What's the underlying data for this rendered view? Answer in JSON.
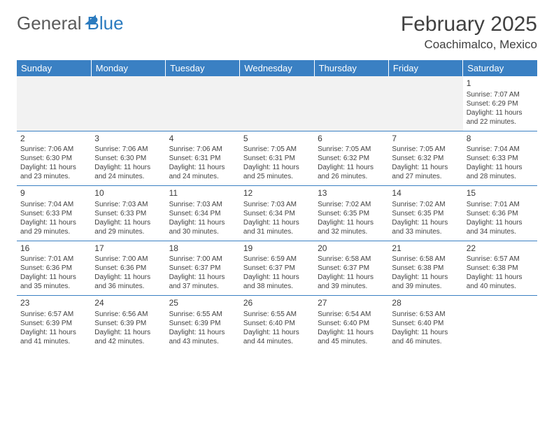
{
  "logo": {
    "part1": "General",
    "part2": "Blue"
  },
  "title": "February 2025",
  "location": "Coachimalco, Mexico",
  "colors": {
    "header_bg": "#3a80c3",
    "header_text": "#ffffff",
    "border": "#3a80c3",
    "text": "#424242",
    "logo_gray": "#5b5b5b",
    "logo_blue": "#2b7bbf",
    "blank_bg": "#f2f2f2"
  },
  "weekdays": [
    "Sunday",
    "Monday",
    "Tuesday",
    "Wednesday",
    "Thursday",
    "Friday",
    "Saturday"
  ],
  "cells": [
    [
      null,
      null,
      null,
      null,
      null,
      null,
      {
        "d": "1",
        "sr": "Sunrise: 7:07 AM",
        "ss": "Sunset: 6:29 PM",
        "dl1": "Daylight: 11 hours",
        "dl2": "and 22 minutes."
      }
    ],
    [
      {
        "d": "2",
        "sr": "Sunrise: 7:06 AM",
        "ss": "Sunset: 6:30 PM",
        "dl1": "Daylight: 11 hours",
        "dl2": "and 23 minutes."
      },
      {
        "d": "3",
        "sr": "Sunrise: 7:06 AM",
        "ss": "Sunset: 6:30 PM",
        "dl1": "Daylight: 11 hours",
        "dl2": "and 24 minutes."
      },
      {
        "d": "4",
        "sr": "Sunrise: 7:06 AM",
        "ss": "Sunset: 6:31 PM",
        "dl1": "Daylight: 11 hours",
        "dl2": "and 24 minutes."
      },
      {
        "d": "5",
        "sr": "Sunrise: 7:05 AM",
        "ss": "Sunset: 6:31 PM",
        "dl1": "Daylight: 11 hours",
        "dl2": "and 25 minutes."
      },
      {
        "d": "6",
        "sr": "Sunrise: 7:05 AM",
        "ss": "Sunset: 6:32 PM",
        "dl1": "Daylight: 11 hours",
        "dl2": "and 26 minutes."
      },
      {
        "d": "7",
        "sr": "Sunrise: 7:05 AM",
        "ss": "Sunset: 6:32 PM",
        "dl1": "Daylight: 11 hours",
        "dl2": "and 27 minutes."
      },
      {
        "d": "8",
        "sr": "Sunrise: 7:04 AM",
        "ss": "Sunset: 6:33 PM",
        "dl1": "Daylight: 11 hours",
        "dl2": "and 28 minutes."
      }
    ],
    [
      {
        "d": "9",
        "sr": "Sunrise: 7:04 AM",
        "ss": "Sunset: 6:33 PM",
        "dl1": "Daylight: 11 hours",
        "dl2": "and 29 minutes."
      },
      {
        "d": "10",
        "sr": "Sunrise: 7:03 AM",
        "ss": "Sunset: 6:33 PM",
        "dl1": "Daylight: 11 hours",
        "dl2": "and 29 minutes."
      },
      {
        "d": "11",
        "sr": "Sunrise: 7:03 AM",
        "ss": "Sunset: 6:34 PM",
        "dl1": "Daylight: 11 hours",
        "dl2": "and 30 minutes."
      },
      {
        "d": "12",
        "sr": "Sunrise: 7:03 AM",
        "ss": "Sunset: 6:34 PM",
        "dl1": "Daylight: 11 hours",
        "dl2": "and 31 minutes."
      },
      {
        "d": "13",
        "sr": "Sunrise: 7:02 AM",
        "ss": "Sunset: 6:35 PM",
        "dl1": "Daylight: 11 hours",
        "dl2": "and 32 minutes."
      },
      {
        "d": "14",
        "sr": "Sunrise: 7:02 AM",
        "ss": "Sunset: 6:35 PM",
        "dl1": "Daylight: 11 hours",
        "dl2": "and 33 minutes."
      },
      {
        "d": "15",
        "sr": "Sunrise: 7:01 AM",
        "ss": "Sunset: 6:36 PM",
        "dl1": "Daylight: 11 hours",
        "dl2": "and 34 minutes."
      }
    ],
    [
      {
        "d": "16",
        "sr": "Sunrise: 7:01 AM",
        "ss": "Sunset: 6:36 PM",
        "dl1": "Daylight: 11 hours",
        "dl2": "and 35 minutes."
      },
      {
        "d": "17",
        "sr": "Sunrise: 7:00 AM",
        "ss": "Sunset: 6:36 PM",
        "dl1": "Daylight: 11 hours",
        "dl2": "and 36 minutes."
      },
      {
        "d": "18",
        "sr": "Sunrise: 7:00 AM",
        "ss": "Sunset: 6:37 PM",
        "dl1": "Daylight: 11 hours",
        "dl2": "and 37 minutes."
      },
      {
        "d": "19",
        "sr": "Sunrise: 6:59 AM",
        "ss": "Sunset: 6:37 PM",
        "dl1": "Daylight: 11 hours",
        "dl2": "and 38 minutes."
      },
      {
        "d": "20",
        "sr": "Sunrise: 6:58 AM",
        "ss": "Sunset: 6:37 PM",
        "dl1": "Daylight: 11 hours",
        "dl2": "and 39 minutes."
      },
      {
        "d": "21",
        "sr": "Sunrise: 6:58 AM",
        "ss": "Sunset: 6:38 PM",
        "dl1": "Daylight: 11 hours",
        "dl2": "and 39 minutes."
      },
      {
        "d": "22",
        "sr": "Sunrise: 6:57 AM",
        "ss": "Sunset: 6:38 PM",
        "dl1": "Daylight: 11 hours",
        "dl2": "and 40 minutes."
      }
    ],
    [
      {
        "d": "23",
        "sr": "Sunrise: 6:57 AM",
        "ss": "Sunset: 6:39 PM",
        "dl1": "Daylight: 11 hours",
        "dl2": "and 41 minutes."
      },
      {
        "d": "24",
        "sr": "Sunrise: 6:56 AM",
        "ss": "Sunset: 6:39 PM",
        "dl1": "Daylight: 11 hours",
        "dl2": "and 42 minutes."
      },
      {
        "d": "25",
        "sr": "Sunrise: 6:55 AM",
        "ss": "Sunset: 6:39 PM",
        "dl1": "Daylight: 11 hours",
        "dl2": "and 43 minutes."
      },
      {
        "d": "26",
        "sr": "Sunrise: 6:55 AM",
        "ss": "Sunset: 6:40 PM",
        "dl1": "Daylight: 11 hours",
        "dl2": "and 44 minutes."
      },
      {
        "d": "27",
        "sr": "Sunrise: 6:54 AM",
        "ss": "Sunset: 6:40 PM",
        "dl1": "Daylight: 11 hours",
        "dl2": "and 45 minutes."
      },
      {
        "d": "28",
        "sr": "Sunrise: 6:53 AM",
        "ss": "Sunset: 6:40 PM",
        "dl1": "Daylight: 11 hours",
        "dl2": "and 46 minutes."
      },
      null
    ]
  ]
}
